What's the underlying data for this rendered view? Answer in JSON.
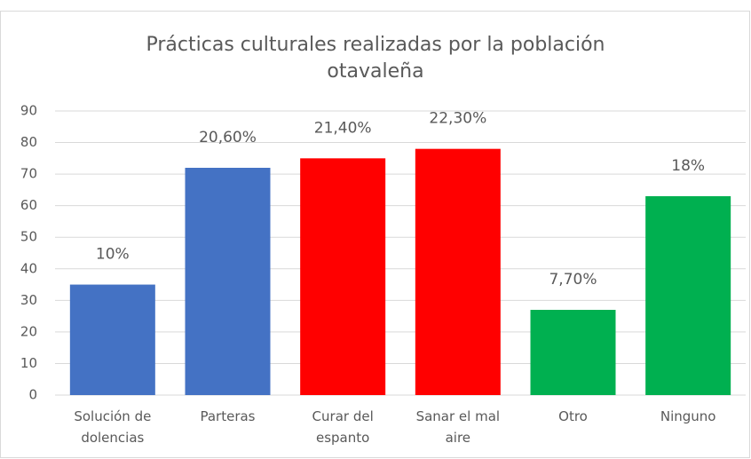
{
  "chart_data": {
    "type": "bar",
    "title": "Prácticas culturales realizadas por la población otavaleña",
    "categories": [
      "Solución de dolencias",
      "Parteras",
      "Curar del espanto",
      "Sanar el mal aire",
      "Otro",
      "Ninguno"
    ],
    "values": [
      35,
      72,
      75,
      78,
      27,
      63
    ],
    "colors": [
      "#4472c4",
      "#4472c4",
      "#ff0000",
      "#ff0000",
      "#00b050",
      "#00b050"
    ],
    "annotations": [
      "10%",
      "20,60%",
      "21,40%",
      "22,30%",
      "7,70%",
      "18%"
    ],
    "ylim": [
      0,
      90
    ],
    "yticks": [
      0,
      10,
      20,
      30,
      40,
      50,
      60,
      70,
      80,
      90
    ],
    "grid": true
  }
}
